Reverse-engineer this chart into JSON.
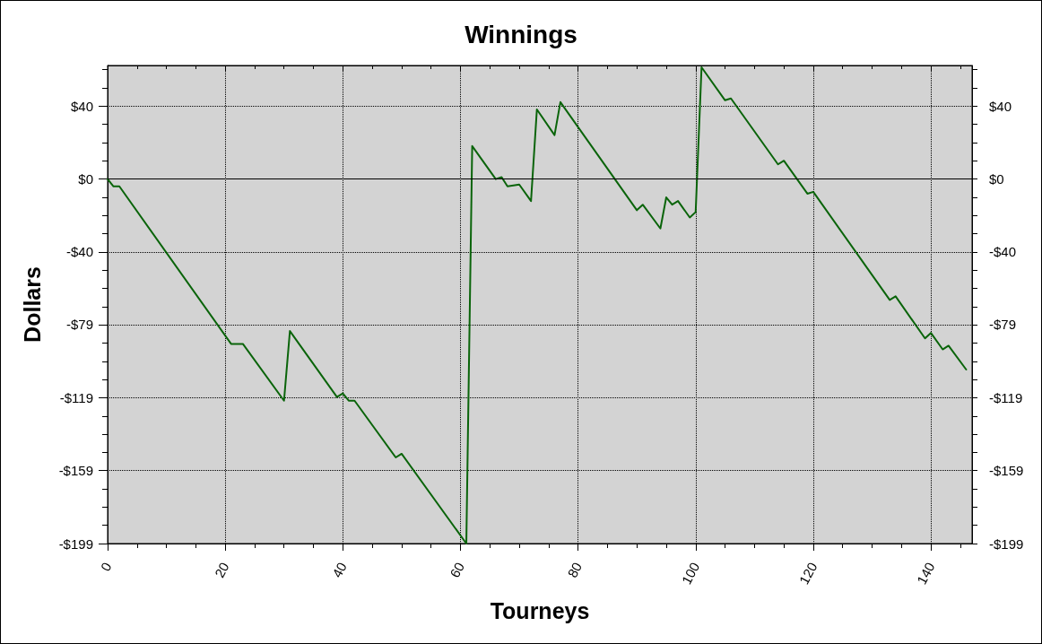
{
  "chart_data": {
    "type": "line",
    "title": "Winnings",
    "xlabel": "Tourneys",
    "ylabel": "Dollars",
    "x": [
      0,
      1,
      2,
      21,
      23,
      30,
      31,
      39,
      40,
      41,
      42,
      49,
      50,
      61,
      62,
      66,
      67,
      68,
      70,
      72,
      73,
      76,
      77,
      90,
      91,
      94,
      95,
      96,
      97,
      99,
      100,
      101,
      105,
      106,
      114,
      115,
      119,
      120,
      133,
      134,
      139,
      140,
      142,
      143,
      146
    ],
    "values": [
      0,
      -4,
      -4,
      -90,
      -90,
      -121,
      -83,
      -119,
      -117,
      -121,
      -121,
      -152,
      -150,
      -199,
      18,
      0,
      1,
      -4,
      -3,
      -12,
      38,
      24,
      42,
      -17,
      -14,
      -27,
      -10,
      -14,
      -12,
      -21,
      -18,
      61,
      43,
      44,
      8,
      10,
      -8,
      -7,
      -66,
      -64,
      -87,
      -84,
      -93,
      -91,
      -104
    ],
    "color": "#0a640a",
    "xlim": [
      0,
      147
    ],
    "xticks": [
      0,
      20,
      40,
      60,
      80,
      100,
      120,
      140
    ],
    "ylim": [
      -199,
      62
    ],
    "yticks": [
      {
        "value": -199,
        "label": "-$199"
      },
      {
        "value": -159.2,
        "label": "-$159"
      },
      {
        "value": -119.4,
        "label": "-$119"
      },
      {
        "value": -79.4,
        "label": "-$79"
      },
      {
        "value": -39.8,
        "label": "-$40"
      },
      {
        "value": 0,
        "label": "$0"
      },
      {
        "value": 39.8,
        "label": "$40"
      }
    ],
    "y2lim": [
      -199,
      62
    ],
    "y2ticks": [
      {
        "value": -199,
        "label": "-$199"
      },
      {
        "value": -159.2,
        "label": "-$159"
      },
      {
        "value": -119.4,
        "label": "-$119"
      },
      {
        "value": -79.4,
        "label": "-$79"
      },
      {
        "value": -39.8,
        "label": "-$40"
      },
      {
        "value": 0,
        "label": "$0"
      },
      {
        "value": 39.8,
        "label": "$40"
      }
    ],
    "ref_lines": [
      {
        "axis": "y",
        "value": 0,
        "color": "#000000",
        "line_style": "solid"
      }
    ],
    "grid": true,
    "marker": "none",
    "line_style": "solid"
  }
}
